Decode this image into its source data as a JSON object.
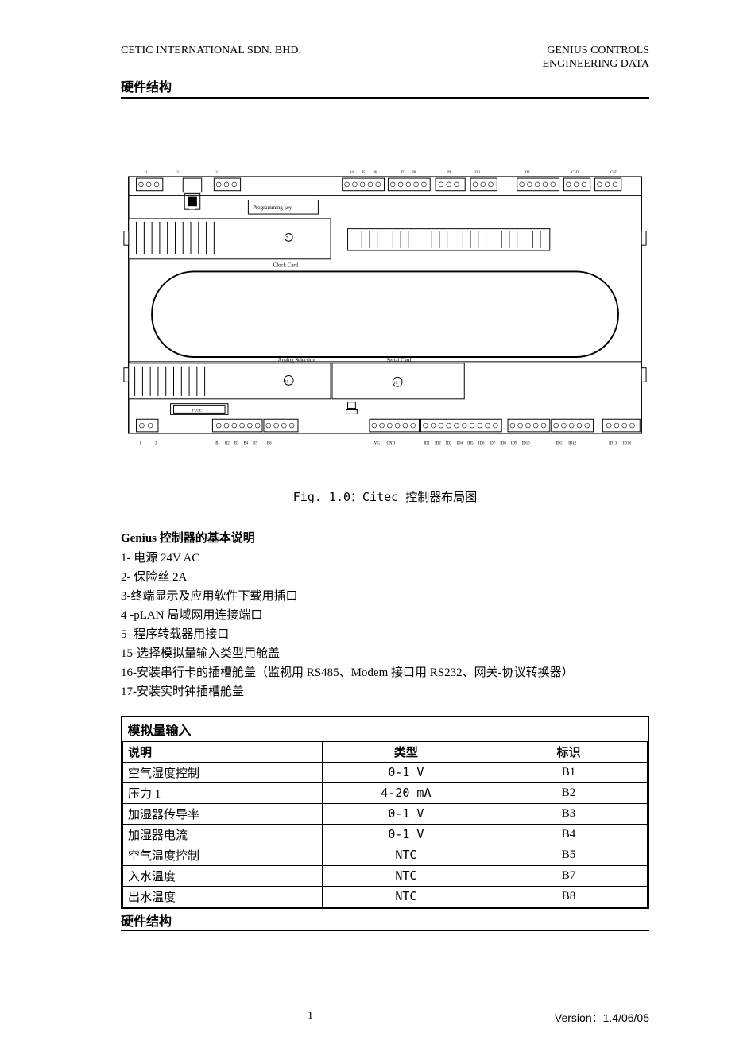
{
  "header": {
    "company": "CETIC   INTERNATIONAL SDN. BHD.",
    "right1": "GENIUS CONTROLS",
    "right2": "ENGINEERING DATA"
  },
  "section_title": "硬件结构",
  "diagram": {
    "terminal_labels_top_left": [
      "J1",
      "J2",
      "J3"
    ],
    "terminal_labels_top_mid": [
      "J4",
      "J5",
      "J6",
      "J7",
      "J8"
    ],
    "terminal_labels_top_right": [
      "J9",
      "CH 2",
      "CH 3"
    ],
    "prog_key": "Programming key",
    "clock_card": "Clock Card",
    "analog_sel": "Analog Selection",
    "serial_card": "Serial Card",
    "fuse": "FUSE",
    "node_15": "15",
    "node_16": "16",
    "node_17": "17",
    "bottom_labels": [
      "1",
      "2",
      "B1",
      "B2",
      "B3",
      "B4",
      "B5",
      "B6",
      "VG",
      "GND",
      "",
      "ID1",
      "ID2",
      "ID3",
      "ID4",
      "ID5",
      "ID6",
      "ID7",
      "ID8",
      "",
      "",
      "",
      "ID9",
      "ID10",
      "ID11",
      "ID12",
      "",
      "ID13",
      "ID14"
    ]
  },
  "fig_caption": "Fig. 1.0：Citec 控制器布局图",
  "subsection_title": "Genius 控制器的基本说明",
  "desc_lines": [
    "1- 电源 24V AC",
    "2- 保险丝 2A",
    "3-终端显示及应用软件下载用插口",
    "4 -pLAN 局域网用连接端口",
    "5- 程序转载器用接口",
    "15-选择模拟量输入类型用舱盖",
    "16-安装串行卡的插槽舱盖（监视用 RS485、Modem 接口用 RS232、网关-协议转换器）",
    "17-安装实时钟插槽舱盖"
  ],
  "table": {
    "title": "模拟量输入",
    "columns": [
      "说明",
      "类型",
      "标识"
    ],
    "rows": [
      [
        "空气湿度控制",
        "0-1 V",
        "B1"
      ],
      [
        "压力 1",
        "4-20 mA",
        "B2"
      ],
      [
        "加湿器传导率",
        "0-1 V",
        "B3"
      ],
      [
        "加湿器电流",
        "0-1 V",
        "B4"
      ],
      [
        "空气温度控制",
        "NTC",
        "B5"
      ],
      [
        "入水温度",
        "NTC",
        "B7"
      ],
      [
        "出水温度",
        "NTC",
        "B8"
      ]
    ]
  },
  "section_title_bottom": "硬件结构",
  "footer": {
    "page": "1",
    "version": "Version：1.4/06/05"
  },
  "style": {
    "page_bg": "#ffffff",
    "text_color": "#000000",
    "border_color": "#000000",
    "pcb_fill": "#ffffff",
    "pcb_stroke": "#000000",
    "stroke_w": 1
  }
}
